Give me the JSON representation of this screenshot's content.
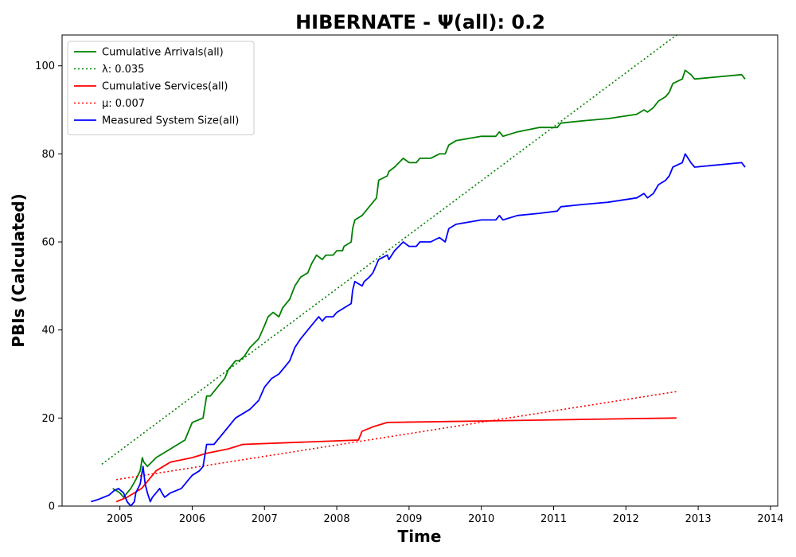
{
  "chart_data": {
    "type": "line",
    "title": "HIBERNATE -  Ψ(all): 0.2",
    "xlabel": "Time",
    "ylabel": "PBIs (Calculated)",
    "xlim": [
      2004.2,
      2014.1
    ],
    "ylim": [
      0,
      107
    ],
    "x_ticks": [
      2005,
      2006,
      2007,
      2008,
      2009,
      2010,
      2011,
      2012,
      2013,
      2014
    ],
    "y_ticks": [
      0,
      20,
      40,
      60,
      80,
      100
    ],
    "grid": false,
    "legend_position": "top-left",
    "series": [
      {
        "name": "Cumulative Arrivals(all)",
        "color": "#008000",
        "style": "solid",
        "points": [
          [
            2004.9,
            4
          ],
          [
            2005.0,
            3
          ],
          [
            2005.05,
            2
          ],
          [
            2005.15,
            4
          ],
          [
            2005.22,
            6
          ],
          [
            2005.28,
            8
          ],
          [
            2005.31,
            11
          ],
          [
            2005.33,
            10
          ],
          [
            2005.38,
            9
          ],
          [
            2005.5,
            11
          ],
          [
            2005.7,
            13
          ],
          [
            2005.9,
            15
          ],
          [
            2005.95,
            17
          ],
          [
            2006.0,
            19
          ],
          [
            2006.15,
            20
          ],
          [
            2006.18,
            23
          ],
          [
            2006.2,
            25
          ],
          [
            2006.25,
            25
          ],
          [
            2006.35,
            27
          ],
          [
            2006.45,
            29
          ],
          [
            2006.5,
            31
          ],
          [
            2006.55,
            32
          ],
          [
            2006.6,
            33
          ],
          [
            2006.65,
            33
          ],
          [
            2006.72,
            34
          ],
          [
            2006.8,
            36
          ],
          [
            2006.92,
            38
          ],
          [
            2007.0,
            41
          ],
          [
            2007.05,
            43
          ],
          [
            2007.12,
            44
          ],
          [
            2007.2,
            43
          ],
          [
            2007.25,
            45
          ],
          [
            2007.35,
            47
          ],
          [
            2007.42,
            50
          ],
          [
            2007.5,
            52
          ],
          [
            2007.6,
            53
          ],
          [
            2007.65,
            55
          ],
          [
            2007.72,
            57
          ],
          [
            2007.8,
            56
          ],
          [
            2007.85,
            57
          ],
          [
            2007.95,
            57
          ],
          [
            2008.0,
            58
          ],
          [
            2008.08,
            58
          ],
          [
            2008.1,
            59
          ],
          [
            2008.2,
            60
          ],
          [
            2008.22,
            63
          ],
          [
            2008.25,
            65
          ],
          [
            2008.35,
            66
          ],
          [
            2008.4,
            67
          ],
          [
            2008.5,
            69
          ],
          [
            2008.55,
            70
          ],
          [
            2008.58,
            74
          ],
          [
            2008.7,
            75
          ],
          [
            2008.72,
            76
          ],
          [
            2008.8,
            77
          ],
          [
            2008.92,
            79
          ],
          [
            2009.0,
            78
          ],
          [
            2009.1,
            78
          ],
          [
            2009.15,
            79
          ],
          [
            2009.2,
            79
          ],
          [
            2009.3,
            79
          ],
          [
            2009.42,
            80
          ],
          [
            2009.5,
            80
          ],
          [
            2009.55,
            82
          ],
          [
            2009.65,
            83
          ],
          [
            2010.0,
            84
          ],
          [
            2010.2,
            84
          ],
          [
            2010.25,
            85
          ],
          [
            2010.3,
            84
          ],
          [
            2010.5,
            85
          ],
          [
            2010.8,
            86
          ],
          [
            2011.05,
            86
          ],
          [
            2011.1,
            87
          ],
          [
            2011.4,
            87.5
          ],
          [
            2011.75,
            88
          ],
          [
            2012.15,
            89
          ],
          [
            2012.25,
            90
          ],
          [
            2012.3,
            89.5
          ],
          [
            2012.38,
            90.5
          ],
          [
            2012.45,
            92
          ],
          [
            2012.55,
            93
          ],
          [
            2012.6,
            94
          ],
          [
            2012.65,
            96
          ],
          [
            2012.78,
            97
          ],
          [
            2012.82,
            99
          ],
          [
            2012.9,
            98
          ],
          [
            2012.95,
            97
          ],
          [
            2013.6,
            98
          ],
          [
            2013.65,
            97
          ]
        ]
      },
      {
        "name": "λ: 0.035",
        "color": "#008000",
        "style": "dotted",
        "points": [
          [
            2004.75,
            9.5
          ],
          [
            2012.7,
            107
          ]
        ]
      },
      {
        "name": "Cumulative Services(all)",
        "color": "#ff0000",
        "style": "solid",
        "points": [
          [
            2004.95,
            1
          ],
          [
            2005.1,
            2
          ],
          [
            2005.2,
            3
          ],
          [
            2005.3,
            4
          ],
          [
            2005.4,
            6
          ],
          [
            2005.45,
            7
          ],
          [
            2005.5,
            8
          ],
          [
            2005.6,
            9
          ],
          [
            2005.7,
            10
          ],
          [
            2006.0,
            11
          ],
          [
            2006.2,
            12
          ],
          [
            2006.5,
            13
          ],
          [
            2006.7,
            14
          ],
          [
            2008.3,
            15
          ],
          [
            2008.35,
            17
          ],
          [
            2008.5,
            18
          ],
          [
            2008.7,
            19
          ],
          [
            2012.7,
            20
          ]
        ]
      },
      {
        "name": "μ: 0.007",
        "color": "#ff0000",
        "style": "dotted",
        "points": [
          [
            2004.95,
            6
          ],
          [
            2012.7,
            26
          ]
        ]
      },
      {
        "name": "Measured System Size(all)",
        "color": "#0000ff",
        "style": "solid",
        "points": [
          [
            2004.6,
            1
          ],
          [
            2004.7,
            1.5
          ],
          [
            2004.85,
            2.5
          ],
          [
            2004.92,
            3.5
          ],
          [
            2004.98,
            4
          ],
          [
            2005.05,
            3
          ],
          [
            2005.1,
            1
          ],
          [
            2005.15,
            0
          ],
          [
            2005.2,
            1
          ],
          [
            2005.22,
            3
          ],
          [
            2005.28,
            5
          ],
          [
            2005.32,
            9
          ],
          [
            2005.35,
            5
          ],
          [
            2005.38,
            3
          ],
          [
            2005.42,
            1
          ],
          [
            2005.45,
            2
          ],
          [
            2005.5,
            3
          ],
          [
            2005.55,
            4
          ],
          [
            2005.58,
            3
          ],
          [
            2005.62,
            2
          ],
          [
            2005.7,
            3
          ],
          [
            2005.85,
            4
          ],
          [
            2005.95,
            6
          ],
          [
            2006.0,
            7
          ],
          [
            2006.1,
            8
          ],
          [
            2006.15,
            9
          ],
          [
            2006.18,
            12
          ],
          [
            2006.2,
            14
          ],
          [
            2006.3,
            14
          ],
          [
            2006.4,
            16
          ],
          [
            2006.5,
            18
          ],
          [
            2006.6,
            20
          ],
          [
            2006.7,
            21
          ],
          [
            2006.8,
            22
          ],
          [
            2006.92,
            24
          ],
          [
            2007.0,
            27
          ],
          [
            2007.1,
            29
          ],
          [
            2007.2,
            30
          ],
          [
            2007.25,
            31
          ],
          [
            2007.35,
            33
          ],
          [
            2007.42,
            36
          ],
          [
            2007.5,
            38
          ],
          [
            2007.6,
            40
          ],
          [
            2007.7,
            42
          ],
          [
            2007.75,
            43
          ],
          [
            2007.8,
            42
          ],
          [
            2007.85,
            43
          ],
          [
            2007.95,
            43
          ],
          [
            2008.0,
            44
          ],
          [
            2008.1,
            45
          ],
          [
            2008.2,
            46
          ],
          [
            2008.22,
            49
          ],
          [
            2008.25,
            51
          ],
          [
            2008.35,
            50
          ],
          [
            2008.38,
            51
          ],
          [
            2008.45,
            52
          ],
          [
            2008.5,
            53
          ],
          [
            2008.58,
            56
          ],
          [
            2008.7,
            57
          ],
          [
            2008.72,
            56
          ],
          [
            2008.8,
            58
          ],
          [
            2008.92,
            60
          ],
          [
            2009.0,
            59
          ],
          [
            2009.1,
            59
          ],
          [
            2009.15,
            60
          ],
          [
            2009.2,
            60
          ],
          [
            2009.3,
            60
          ],
          [
            2009.42,
            61
          ],
          [
            2009.5,
            60
          ],
          [
            2009.55,
            63
          ],
          [
            2009.65,
            64
          ],
          [
            2010.0,
            65
          ],
          [
            2010.2,
            65
          ],
          [
            2010.25,
            66
          ],
          [
            2010.3,
            65
          ],
          [
            2010.5,
            66
          ],
          [
            2010.8,
            66.5
          ],
          [
            2011.05,
            67
          ],
          [
            2011.1,
            68
          ],
          [
            2011.4,
            68.5
          ],
          [
            2011.75,
            69
          ],
          [
            2012.15,
            70
          ],
          [
            2012.25,
            71
          ],
          [
            2012.3,
            70
          ],
          [
            2012.38,
            71
          ],
          [
            2012.45,
            73
          ],
          [
            2012.55,
            74
          ],
          [
            2012.6,
            75
          ],
          [
            2012.65,
            77
          ],
          [
            2012.78,
            78
          ],
          [
            2012.82,
            80
          ],
          [
            2012.9,
            78
          ],
          [
            2012.95,
            77
          ],
          [
            2013.6,
            78
          ],
          [
            2013.65,
            77
          ]
        ]
      }
    ]
  }
}
